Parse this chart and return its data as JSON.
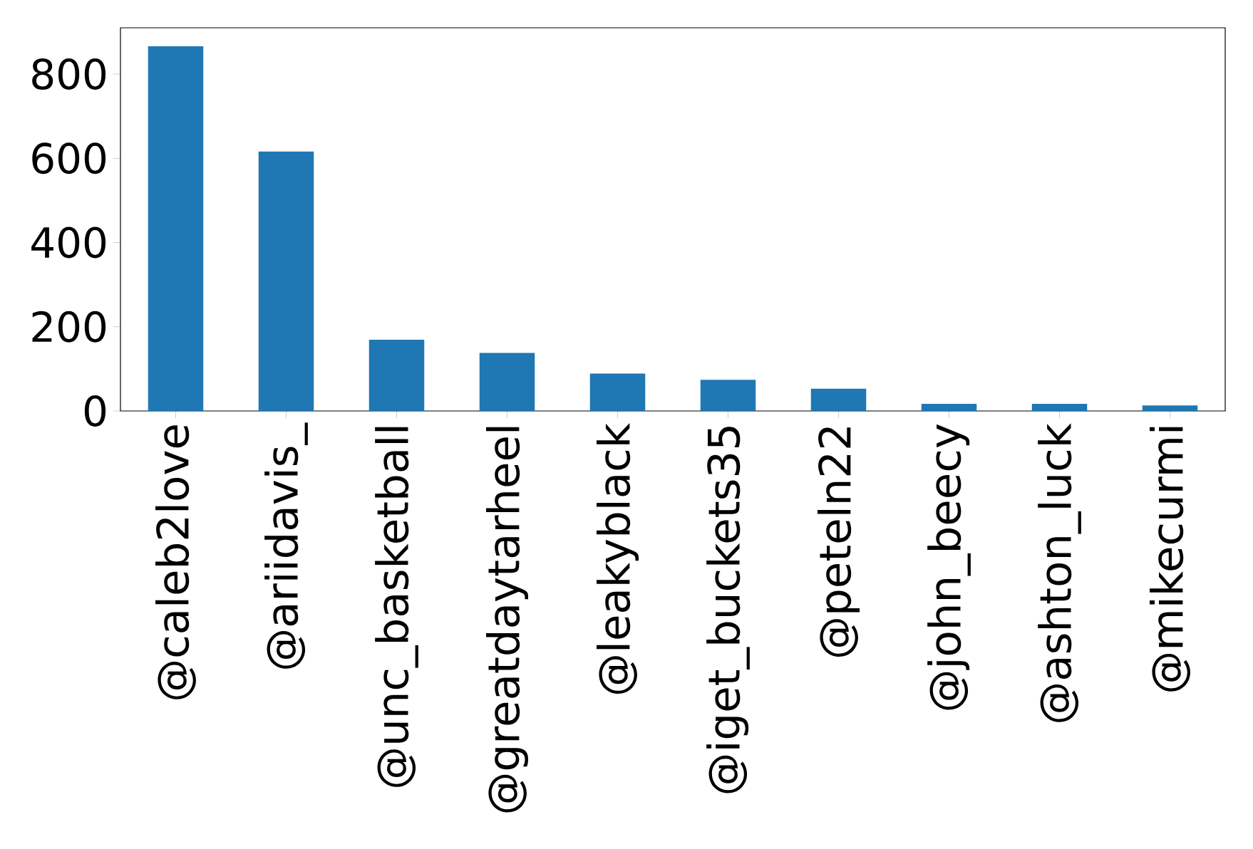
{
  "chart_data": {
    "type": "bar",
    "categories": [
      "@caleb2love",
      "@ariidavis_",
      "@unc_basketball",
      "@greatdaytarheel",
      "@leakyblack",
      "@iget_buckets35",
      "@peteln22",
      "@john_beecy",
      "@ashton_luck",
      "@mikecurmi"
    ],
    "values": [
      866,
      616,
      169,
      138,
      89,
      74,
      53,
      17,
      17,
      13
    ],
    "color": "#1f77b4",
    "ylim": [
      0,
      910
    ],
    "yticks": [
      0,
      200,
      400,
      600,
      800
    ],
    "grid": false
  }
}
